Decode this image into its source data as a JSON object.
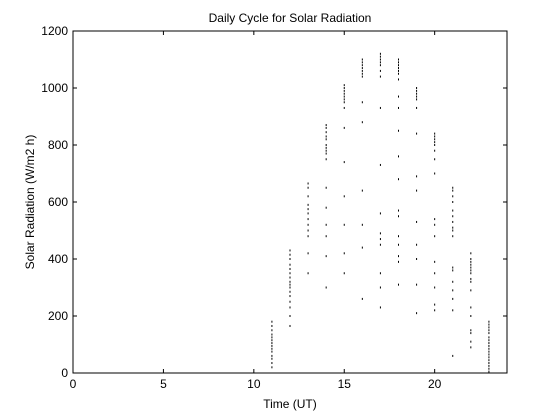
{
  "chart_data": {
    "type": "scatter",
    "title": "Daily Cycle for Solar Radiation",
    "xlabel": "Time (UT)",
    "ylabel": "Solar Radiation (W/m2 h)",
    "xlim": [
      0,
      24
    ],
    "ylim": [
      0,
      1200
    ],
    "xticks": [
      0,
      5,
      10,
      15,
      20
    ],
    "yticks": [
      0,
      200,
      400,
      600,
      800,
      1000,
      1200
    ],
    "grid": false,
    "marker_color": "#000000",
    "series": [
      {
        "columns": [
          {
            "x": 11,
            "y": [
              20,
              35,
              50,
              60,
              75,
              85,
              95,
              105,
              115,
              125,
              135,
              150,
              165,
              180
            ]
          },
          {
            "x": 12,
            "y": [
              165,
              200,
              230,
              250,
              270,
              285,
              300,
              310,
              320,
              335,
              350,
              365,
              380,
              400,
              415,
              430
            ]
          },
          {
            "x": 13,
            "y": [
              350,
              420,
              480,
              500,
              520,
              540,
              560,
              575,
              590,
              620,
              650,
              665
            ]
          },
          {
            "x": 14,
            "y": [
              300,
              410,
              480,
              520,
              580,
              650,
              750,
              770,
              780,
              790,
              800,
              820,
              830,
              845,
              860,
              870
            ]
          },
          {
            "x": 15,
            "y": [
              350,
              420,
              520,
              620,
              740,
              860,
              930,
              950,
              960,
              970,
              980,
              990,
              1000,
              1010
            ]
          },
          {
            "x": 16,
            "y": [
              260,
              440,
              520,
              640,
              880,
              950,
              1040,
              1050,
              1060,
              1070,
              1080,
              1090,
              1100
            ]
          },
          {
            "x": 17,
            "y": [
              230,
              300,
              350,
              450,
              470,
              490,
              560,
              730,
              930,
              1040,
              1060,
              1080,
              1090,
              1100,
              1110,
              1120
            ]
          },
          {
            "x": 18,
            "y": [
              310,
              390,
              410,
              450,
              480,
              550,
              570,
              680,
              760,
              850,
              930,
              970,
              1030,
              1050,
              1060,
              1070,
              1080,
              1090,
              1100
            ]
          },
          {
            "x": 19,
            "y": [
              210,
              310,
              400,
              450,
              530,
              640,
              690,
              840,
              930,
              960,
              970,
              980,
              990,
              1000
            ]
          },
          {
            "x": 20,
            "y": [
              220,
              240,
              300,
              350,
              390,
              480,
              520,
              540,
              700,
              750,
              780,
              800,
              810,
              820,
              830,
              840
            ]
          },
          {
            "x": 21,
            "y": [
              60,
              220,
              260,
              290,
              320,
              360,
              370,
              480,
              500,
              510,
              530,
              550,
              570,
              600,
              620,
              640,
              650
            ]
          },
          {
            "x": 22,
            "y": [
              90,
              110,
              140,
              150,
              200,
              230,
              290,
              320,
              330,
              350,
              360,
              370,
              380,
              390,
              400,
              420
            ]
          },
          {
            "x": 23,
            "y": [
              5,
              15,
              25,
              35,
              45,
              55,
              65,
              75,
              85,
              95,
              105,
              115,
              125,
              140,
              150,
              160,
              170,
              180
            ]
          }
        ]
      }
    ]
  }
}
